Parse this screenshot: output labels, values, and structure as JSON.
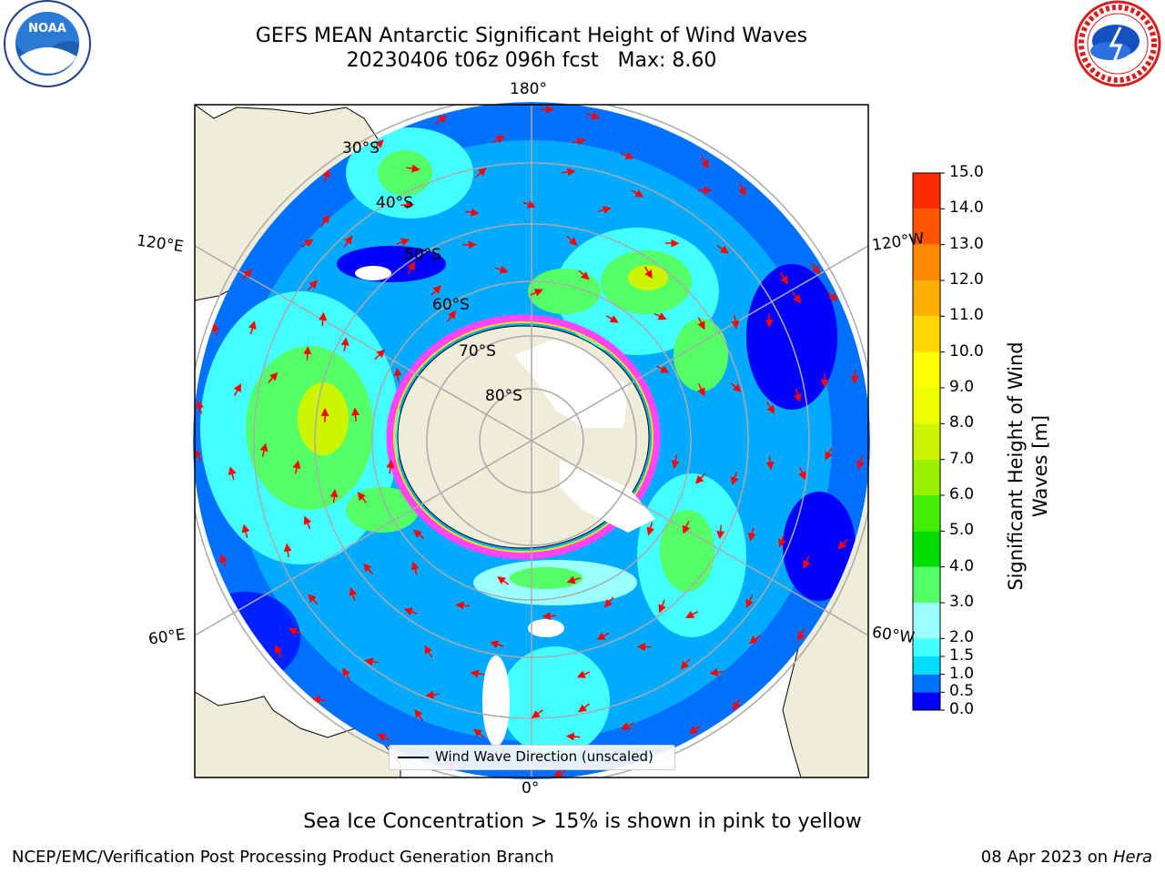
{
  "header": {
    "title_line1": "GEFS MEAN Antarctic Significant Height of Wind Waves",
    "title_line2": "20230406 t06z 096h fcst   Max: 8.60"
  },
  "logos": {
    "left": {
      "name": "noaa-logo",
      "text": "NOAA",
      "ring_text": "NATIONAL OCEANIC AND ATMOSPHERIC ADMINISTRATION · U.S. DEPARTMENT OF COMMERCE"
    },
    "right": {
      "name": "nws-logo",
      "ring_text": "NATIONAL WEATHER SERVICE"
    }
  },
  "map": {
    "projection": "South Polar Stereographic",
    "lon_labels": {
      "top": "180°",
      "bottom": "0°",
      "left_upper": "120°E",
      "left_lower": "60°E",
      "right_upper": "120°W",
      "right_lower": "60°W"
    },
    "lat_labels": [
      "30°S",
      "40°S",
      "50°S",
      "60°S",
      "70°S",
      "80°S"
    ],
    "legend_label": "Wind Wave Direction (unscaled)",
    "arrow_color": "#ff0000",
    "land_color": "#efedd9",
    "ocean_base_color": "#0000ff"
  },
  "colorbar": {
    "label": "Significant Height of Wind Waves [m]",
    "label_line1": "Significant Height of Wind",
    "label_line2": "Waves [m]",
    "levels": [
      "0.0",
      "0.5",
      "1.0",
      "1.5",
      "2.0",
      "3.0",
      "4.0",
      "5.0",
      "6.0",
      "7.0",
      "8.0",
      "9.0",
      "10.0",
      "11.0",
      "12.0",
      "13.0",
      "14.0",
      "15.0"
    ],
    "colors": [
      "#0000ff",
      "#0070ff",
      "#00ddff",
      "#44ffff",
      "#99ffff",
      "#55ff66",
      "#00dd00",
      "#44ee00",
      "#99f000",
      "#ccf500",
      "#eeff00",
      "#ffff00",
      "#ffd700",
      "#ffb000",
      "#ff8800",
      "#ff5500",
      "#ff2a00"
    ]
  },
  "notes": {
    "ice_note": "Sea Ice Concentration > 15% is shown in pink to yellow",
    "footer_left": "NCEP/EMC/Verification Post Processing Product Generation Branch",
    "footer_right_date": "08 Apr 2023 on ",
    "footer_right_machine": "Hera"
  }
}
